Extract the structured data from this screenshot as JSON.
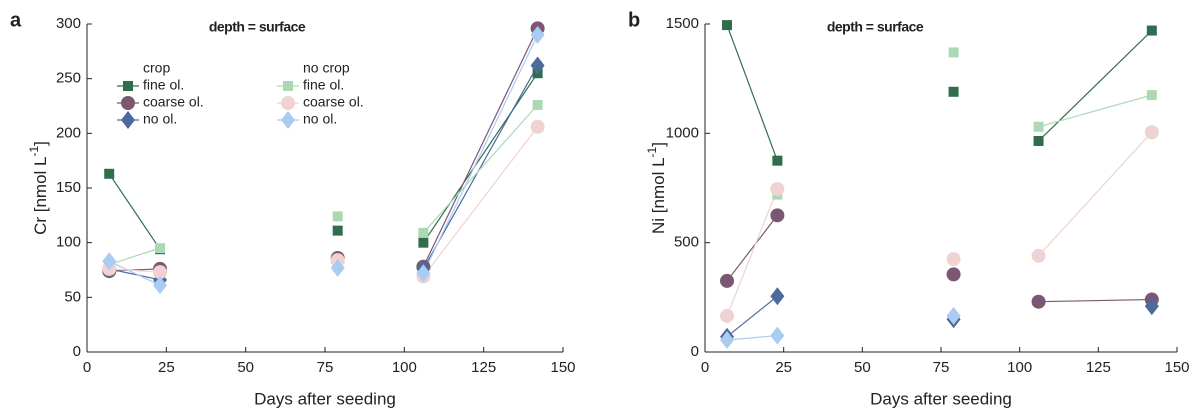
{
  "chart_data": [
    {
      "type": "line",
      "title": "a",
      "subtitle": "depth = surface",
      "x": [
        7,
        23,
        null,
        79,
        null,
        106,
        142
      ],
      "xlim": [
        0,
        150
      ],
      "xticks": [
        0,
        25,
        50,
        75,
        100,
        125,
        150
      ],
      "ylim": [
        0,
        300
      ],
      "yticks": [
        0,
        50,
        100,
        150,
        200,
        250,
        300
      ],
      "xlabel": "Days after seeding",
      "ylabel": "Cr [nmol L",
      "ylabel_sup": "-1",
      "ylabel_end": "]",
      "legend": true,
      "legend_groups": [
        "crop",
        "no crop"
      ],
      "series": [
        {
          "name": "fine ol.",
          "group": 0,
          "marker": "square",
          "color": "#2f6d4c",
          "values": [
            163,
            94,
            null,
            111,
            null,
            100,
            255
          ]
        },
        {
          "name": "coarse ol.",
          "group": 0,
          "marker": "circle",
          "color": "#7b5771",
          "values": [
            74,
            76,
            null,
            86,
            null,
            78,
            296
          ]
        },
        {
          "name": "no ol.",
          "group": 0,
          "marker": "diamond",
          "color": "#4c6b9b",
          "values": [
            76,
            66,
            null,
            82,
            null,
            76,
            262
          ]
        },
        {
          "name": "fine ol.",
          "group": 1,
          "marker": "square",
          "color": "#acd9b4",
          "values": [
            80,
            95,
            null,
            124,
            null,
            109,
            226
          ]
        },
        {
          "name": "coarse ol.",
          "group": 1,
          "marker": "circle",
          "color": "#f0d2d2",
          "values": [
            76,
            73,
            null,
            84,
            null,
            69,
            206
          ]
        },
        {
          "name": "no ol.",
          "group": 1,
          "marker": "diamond",
          "color": "#aacbf2",
          "values": [
            83,
            61,
            null,
            77,
            null,
            72,
            290
          ]
        }
      ]
    },
    {
      "type": "line",
      "title": "b",
      "subtitle": "depth = surface",
      "x": [
        7,
        23,
        null,
        79,
        null,
        106,
        142
      ],
      "xlim": [
        0,
        150
      ],
      "xticks": [
        0,
        25,
        50,
        75,
        100,
        125,
        150
      ],
      "ylim": [
        0,
        1500
      ],
      "yticks": [
        0,
        500,
        1000,
        1500
      ],
      "xlabel": "Days after seeding",
      "ylabel": "Ni [nmol L",
      "ylabel_sup": "-1",
      "ylabel_end": "]",
      "series": [
        {
          "marker": "square",
          "color": "#2f6d4c",
          "values": [
            1495,
            875,
            null,
            1190,
            null,
            965,
            1470
          ]
        },
        {
          "marker": "circle",
          "color": "#7b5771",
          "values": [
            325,
            625,
            null,
            355,
            null,
            230,
            240
          ]
        },
        {
          "marker": "diamond",
          "color": "#4c6b9b",
          "values": [
            70,
            255,
            null,
            150,
            null,
            null,
            210
          ]
        },
        {
          "marker": "square",
          "color": "#acd9b4",
          "values": [
            null,
            720,
            null,
            1370,
            null,
            1030,
            1175
          ]
        },
        {
          "marker": "circle",
          "color": "#f0d2d2",
          "values": [
            165,
            745,
            null,
            425,
            null,
            440,
            1005
          ]
        },
        {
          "marker": "diamond",
          "color": "#aacbf2",
          "values": [
            55,
            75,
            null,
            165,
            null,
            null,
            null
          ]
        }
      ]
    }
  ]
}
